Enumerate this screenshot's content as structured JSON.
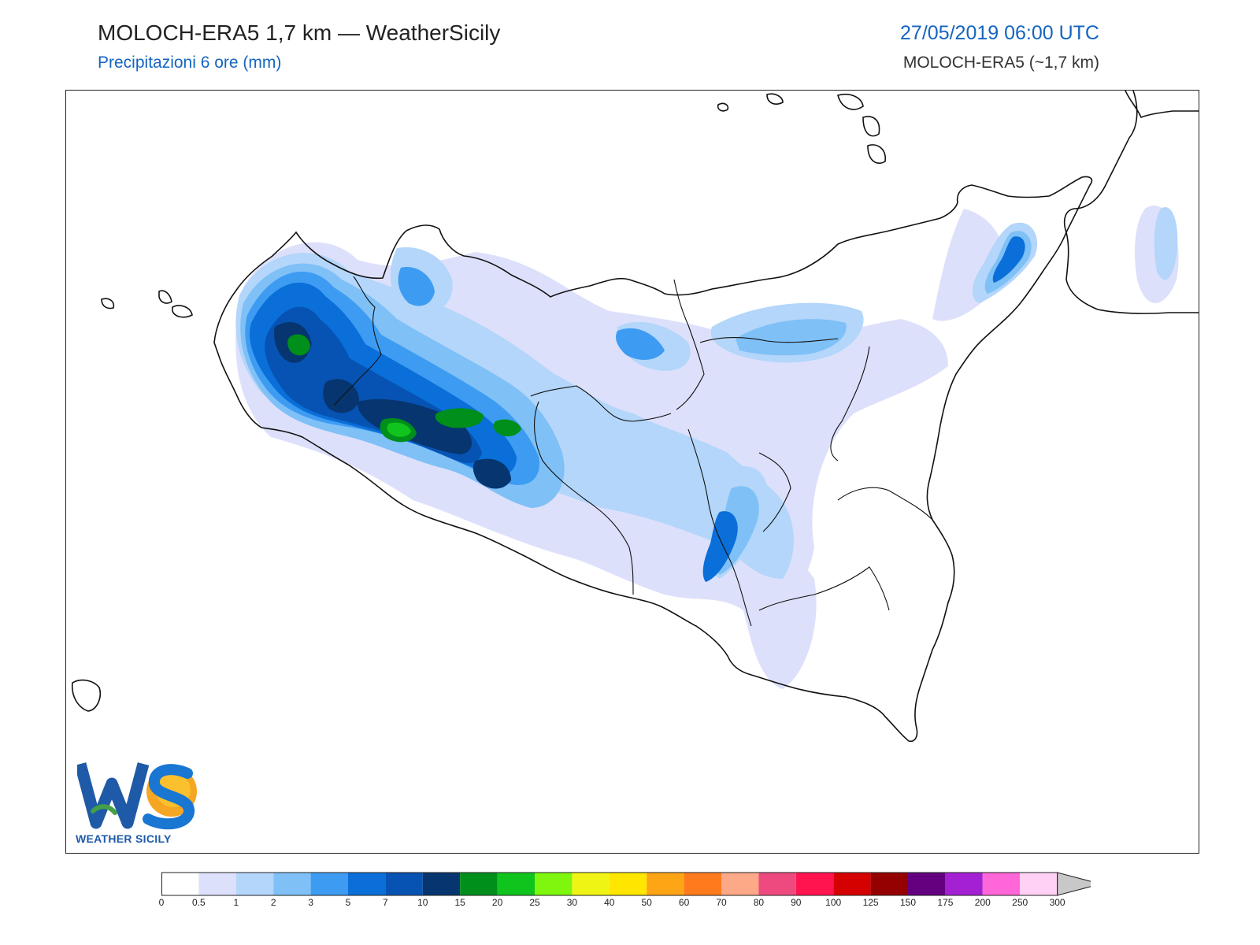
{
  "header": {
    "title": "MOLOCH-ERA5 1,7 km — WeatherSicily",
    "subtitle": "Precipitazioni 6 ore (mm)",
    "datetime": "27/05/2019 06:00 UTC",
    "model": "MOLOCH-ERA5 (~1,7 km)"
  },
  "logo": {
    "letters": "WS",
    "text": "WEATHER SICILY"
  },
  "legend": {
    "ticks": [
      "0",
      "0.5",
      "1",
      "2",
      "3",
      "5",
      "7",
      "10",
      "15",
      "20",
      "25",
      "30",
      "40",
      "50",
      "60",
      "70",
      "80",
      "90",
      "100",
      "125",
      "150",
      "175",
      "200",
      "250",
      "300"
    ],
    "colors": [
      "#ffffff",
      "#dde0fb",
      "#b3d6fa",
      "#7fc0f7",
      "#3d9cf2",
      "#0a6fd8",
      "#0653b3",
      "#06356f",
      "#008f1a",
      "#10c41e",
      "#7ef60e",
      "#f0f414",
      "#fee600",
      "#fea515",
      "#ff7a1c",
      "#fda886",
      "#ee4a7f",
      "#ff1450",
      "#d50000",
      "#950000",
      "#640080",
      "#a421d3",
      "#ff66d7",
      "#ffd1f4"
    ],
    "overflow_color": "#c8c8c8"
  },
  "map": {
    "region": "Sicily",
    "precip_fill_colors": [
      "#dde0fb",
      "#b3d6fa",
      "#7fc0f7",
      "#3d9cf2",
      "#0a6fd8",
      "#0653b3",
      "#06356f",
      "#008f1a",
      "#10c41e"
    ]
  }
}
